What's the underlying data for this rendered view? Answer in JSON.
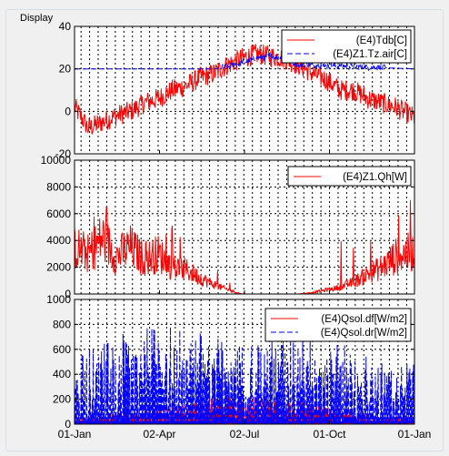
{
  "panel": {
    "title": "Display"
  },
  "x_ticks": [
    "01-Jan",
    "02-Apr",
    "02-Jul",
    "01-Oct",
    "01-Jan"
  ],
  "colors": {
    "red": "#ff0000",
    "blue": "#0000ff",
    "axes_bg": "#ffffff",
    "window_bg": "#f0f0f0"
  },
  "chart_data": [
    {
      "type": "line",
      "x_range_days": [
        0,
        365
      ],
      "ylim": [
        -20,
        40
      ],
      "y_ticks": [
        "40",
        "20",
        "0",
        "-20"
      ],
      "series": [
        {
          "name": "(E4)Tdb[C]",
          "color": "#ff0000",
          "style": "solid",
          "x": [
            0,
            15,
            30,
            45,
            60,
            75,
            90,
            105,
            120,
            135,
            150,
            165,
            180,
            195,
            210,
            225,
            240,
            255,
            270,
            285,
            300,
            315,
            330,
            345,
            365
          ],
          "values": [
            2,
            -8,
            -5,
            -2,
            0,
            4,
            6,
            10,
            12,
            16,
            18,
            22,
            25,
            27,
            26,
            25,
            22,
            18,
            15,
            10,
            10,
            6,
            4,
            2,
            -3
          ]
        },
        {
          "name": "(E4)Z1.Tz.air[C]",
          "color": "#0000ff",
          "style": "dashed",
          "x": [
            0,
            150,
            165,
            180,
            195,
            210,
            225,
            240,
            365
          ],
          "values": [
            20,
            20,
            21,
            23,
            25,
            26,
            25,
            22,
            20
          ]
        }
      ]
    },
    {
      "type": "line",
      "x_range_days": [
        0,
        365
      ],
      "ylim": [
        0,
        10000
      ],
      "y_ticks": [
        "10000",
        "8000",
        "6000",
        "4000",
        "2000",
        "0"
      ],
      "series": [
        {
          "name": "(E4)Z1.Qh[W]",
          "color": "#ff0000",
          "style": "solid",
          "x": [
            0,
            15,
            30,
            45,
            60,
            75,
            90,
            105,
            120,
            135,
            150,
            165,
            180,
            195,
            210,
            225,
            240,
            255,
            270,
            285,
            300,
            315,
            330,
            345,
            365
          ],
          "values": [
            3500,
            3000,
            4200,
            2800,
            3500,
            2600,
            3000,
            2000,
            1800,
            1200,
            700,
            300,
            0,
            0,
            0,
            0,
            0,
            100,
            300,
            500,
            900,
            1500,
            2000,
            2800,
            3200
          ]
        }
      ]
    },
    {
      "type": "line",
      "x_range_days": [
        0,
        365
      ],
      "ylim": [
        0,
        1000
      ],
      "y_ticks": [
        "1000",
        "800",
        "600",
        "400",
        "200",
        "0"
      ],
      "series": [
        {
          "name": "(E4)Qsol.df[W/m2]",
          "color": "#ff0000",
          "style": "solid",
          "x": [
            0,
            30,
            60,
            90,
            120,
            150,
            180,
            210,
            240,
            270,
            300,
            330,
            365
          ],
          "values": [
            60,
            80,
            120,
            160,
            200,
            220,
            230,
            220,
            180,
            140,
            100,
            70,
            60
          ]
        },
        {
          "name": "(E4)Qsol.dr[W/m2]",
          "color": "#0000ff",
          "style": "dashed",
          "x": [
            0,
            30,
            60,
            90,
            120,
            150,
            180,
            210,
            240,
            270,
            300,
            330,
            365
          ],
          "values": [
            550,
            650,
            750,
            800,
            780,
            700,
            650,
            700,
            750,
            700,
            600,
            500,
            500
          ]
        }
      ]
    }
  ]
}
